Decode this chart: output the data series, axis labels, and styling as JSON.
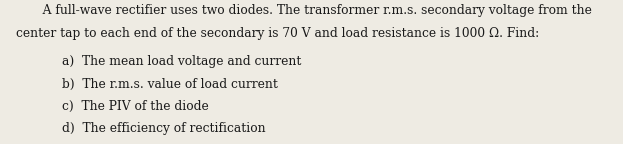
{
  "background_color": "#eeebe3",
  "text_color": "#1a1a1a",
  "line1": "   A full-wave rectifier uses two diodes. The transformer r.m.s. secondary voltage from the",
  "line2": "center tap to each end of the secondary is 70 V and load resistance is 1000 Ω. Find:",
  "items": [
    "a)  The mean load voltage and current",
    "b)  The r.m.s. value of load current",
    "c)  The PIV of the diode",
    "d)  The efficiency of rectification"
  ],
  "font_size": 8.8,
  "fig_width": 6.23,
  "fig_height": 1.44,
  "dpi": 100
}
